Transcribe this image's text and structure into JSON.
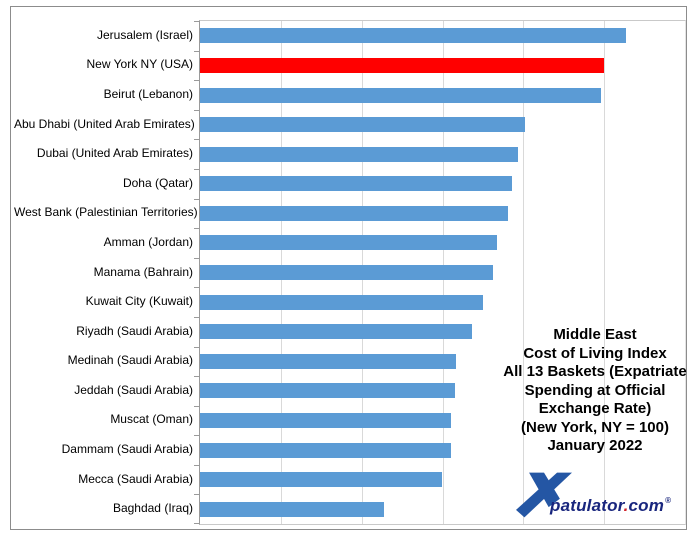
{
  "chart_data": {
    "type": "bar",
    "orientation": "horizontal",
    "title": "Middle East Cost of Living Index All 13 Baskets (Expatriate Spending at Official Exchange Rate) (New York, NY = 100) January 2022",
    "title_lines": [
      "Middle East",
      "Cost of Living Index",
      "All 13 Baskets (Expatriate",
      "Spending  at Official",
      "Exchange Rate)",
      "(New York, NY = 100)",
      "January 2022"
    ],
    "categories": [
      "Jerusalem (Israel)",
      "New York NY (USA)",
      "Beirut (Lebanon)",
      "Abu Dhabi (United Arab Emirates)",
      "Dubai (United Arab Emirates)",
      "Doha (Qatar)",
      "West Bank (Palestinian Territories)",
      "Amman (Jordan)",
      "Manama (Bahrain)",
      "Kuwait City (Kuwait)",
      "Riyadh (Saudi Arabia)",
      "Medinah (Saudi Arabia)",
      "Jeddah (Saudi Arabia)",
      "Muscat (Oman)",
      "Dammam (Saudi Arabia)",
      "Mecca (Saudi Arabia)",
      "Baghdad (Iraq)"
    ],
    "values": [
      105.4,
      100,
      99.2,
      80.4,
      78.7,
      77.2,
      76.2,
      73.5,
      72.5,
      70,
      67.3,
      63.3,
      63.1,
      62.1,
      62.1,
      59.9,
      45.5
    ],
    "xlabel": "",
    "ylabel": "",
    "xlim": [
      0,
      120
    ],
    "gridline_interval": 20,
    "grid": true,
    "legend": "none",
    "bar_color": "#5B9BD5",
    "highlight_color": "#FF0000",
    "highlight_index": 1,
    "highlight_category": "New York NY (USA)"
  },
  "logo": {
    "brand": "Xpatulator.com",
    "text_main": "patulator",
    "dot": ".",
    "text_tld": "com",
    "registered": "®",
    "x_color": "#2456A4",
    "text_color": "#19267E",
    "dot_color": "#D2232A"
  }
}
